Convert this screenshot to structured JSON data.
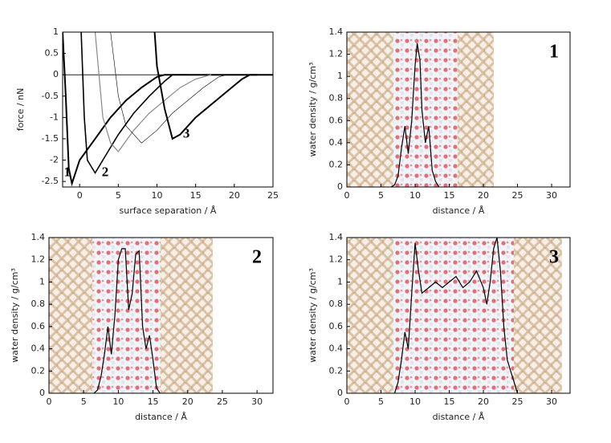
{
  "chart_data": [
    {
      "type": "line",
      "xlabel": "surface separation / Å",
      "ylabel": "force / nN",
      "xlim": [
        -2.2,
        25
      ],
      "ylim": [
        -2.63,
        1
      ],
      "xticks": [
        0,
        5,
        10,
        15,
        20,
        25
      ],
      "yticks": [
        -2.5,
        -2,
        -1.5,
        -1,
        -0.5,
        0,
        0.5,
        1
      ],
      "zero_line": true,
      "series": [
        {
          "color": "#000000",
          "line_width": 2,
          "x": [
            -2.2,
            -1.8,
            -1.4,
            -1,
            0,
            2,
            4,
            6,
            8,
            10,
            11,
            12,
            15,
            20,
            23
          ],
          "values": [
            1,
            -0.5,
            -2.2,
            -2.55,
            -2.0,
            -1.5,
            -1.0,
            -0.6,
            -0.3,
            -0.05,
            0,
            0,
            0,
            0,
            0
          ]
        },
        {
          "color": "#000000",
          "line_width": 1.6,
          "x": [
            0.2,
            0.6,
            1,
            2,
            3,
            5,
            7,
            9,
            11,
            12,
            14
          ],
          "values": [
            1,
            -1,
            -2,
            -2.3,
            -2.0,
            -1.4,
            -0.9,
            -0.5,
            -0.15,
            0,
            0
          ]
        },
        {
          "color": "#888888",
          "line_width": 1.2,
          "x": [
            2,
            3,
            4,
            5,
            7,
            9,
            11,
            13,
            15,
            17
          ],
          "values": [
            1,
            -1,
            -1.6,
            -1.8,
            -1.3,
            -0.9,
            -0.6,
            -0.3,
            -0.1,
            0
          ]
        },
        {
          "color": "#000000",
          "line_width": 0.6,
          "x": [
            4,
            5,
            6,
            8,
            10,
            12,
            14,
            16,
            18,
            19
          ],
          "values": [
            1,
            -0.5,
            -1.2,
            -1.6,
            -1.3,
            -0.9,
            -0.6,
            -0.3,
            -0.05,
            0
          ]
        },
        {
          "color": "#000000",
          "line_width": 2,
          "x": [
            9.7,
            10,
            11,
            12,
            13,
            15,
            17,
            19,
            21,
            22,
            25
          ],
          "values": [
            1,
            0.2,
            -0.8,
            -1.5,
            -1.4,
            -1.0,
            -0.7,
            -0.4,
            -0.1,
            0,
            0
          ]
        }
      ],
      "annotations": [
        {
          "text": "1",
          "x": -1.6,
          "y": -2.3
        },
        {
          "text": "2",
          "x": 3.3,
          "y": -2.3
        },
        {
          "text": "3",
          "x": 13.8,
          "y": -1.4
        }
      ]
    },
    {
      "type": "line",
      "panel_label": "1",
      "xlabel": "distance / Å",
      "ylabel": "water density / g/cm³",
      "xlim": [
        0,
        32.7
      ],
      "ylim": [
        0,
        1.4
      ],
      "xticks": [
        0,
        5,
        10,
        15,
        20,
        25,
        30
      ],
      "yticks": [
        0,
        0.2,
        0.4,
        0.6,
        0.8,
        1,
        1.2,
        1.4
      ],
      "series": [
        {
          "color": "#000000",
          "line_width": 1.2,
          "x": [
            6.5,
            7,
            7.5,
            8,
            8.5,
            9,
            9.5,
            10,
            10.3,
            10.7,
            11,
            11.5,
            12,
            12.5,
            13,
            13.5
          ],
          "values": [
            0,
            0.02,
            0.1,
            0.35,
            0.55,
            0.3,
            0.6,
            1.1,
            1.3,
            1.15,
            0.7,
            0.4,
            0.55,
            0.15,
            0.05,
            0
          ]
        }
      ]
    },
    {
      "type": "line",
      "panel_label": "2",
      "xlabel": "distance / Å",
      "ylabel": "water density / g/cm³",
      "xlim": [
        0,
        32.3
      ],
      "ylim": [
        0,
        1.4
      ],
      "xticks": [
        0,
        5,
        10,
        15,
        20,
        25,
        30
      ],
      "yticks": [
        0,
        0.2,
        0.4,
        0.6,
        0.8,
        1,
        1.2,
        1.4
      ],
      "series": [
        {
          "color": "#000000",
          "line_width": 1.2,
          "x": [
            6.5,
            7,
            7.5,
            8,
            8.5,
            9,
            9.5,
            10,
            10.5,
            11,
            11.5,
            12,
            12.5,
            13,
            13.5,
            14,
            14.5,
            15,
            15.5,
            16
          ],
          "values": [
            0,
            0.03,
            0.15,
            0.35,
            0.6,
            0.35,
            0.7,
            1.2,
            1.3,
            1.3,
            0.75,
            0.9,
            1.25,
            1.28,
            0.6,
            0.4,
            0.52,
            0.3,
            0.05,
            0
          ]
        }
      ]
    },
    {
      "type": "line",
      "panel_label": "3",
      "xlabel": "distance / Å",
      "ylabel": "water density / g/cm³",
      "xlim": [
        0,
        32.7
      ],
      "ylim": [
        0,
        1.4
      ],
      "xticks": [
        0,
        5,
        10,
        15,
        20,
        25,
        30
      ],
      "yticks": [
        0,
        0.2,
        0.4,
        0.6,
        0.8,
        1,
        1.2,
        1.4
      ],
      "series": [
        {
          "color": "#000000",
          "line_width": 1.2,
          "x": [
            7,
            7.5,
            8,
            8.5,
            9,
            9.5,
            10,
            10.5,
            11,
            12,
            13,
            14,
            15,
            16,
            17,
            18,
            19,
            20,
            20.5,
            21,
            21.5,
            22,
            22.5,
            23,
            23.5,
            24,
            24.5,
            25
          ],
          "values": [
            0,
            0.1,
            0.3,
            0.55,
            0.4,
            0.9,
            1.35,
            1.1,
            0.9,
            0.95,
            1.0,
            0.95,
            1.0,
            1.05,
            0.95,
            1.0,
            1.1,
            0.95,
            0.8,
            1.0,
            1.3,
            1.4,
            1.1,
            0.6,
            0.3,
            0.2,
            0.1,
            0
          ]
        }
      ]
    }
  ]
}
